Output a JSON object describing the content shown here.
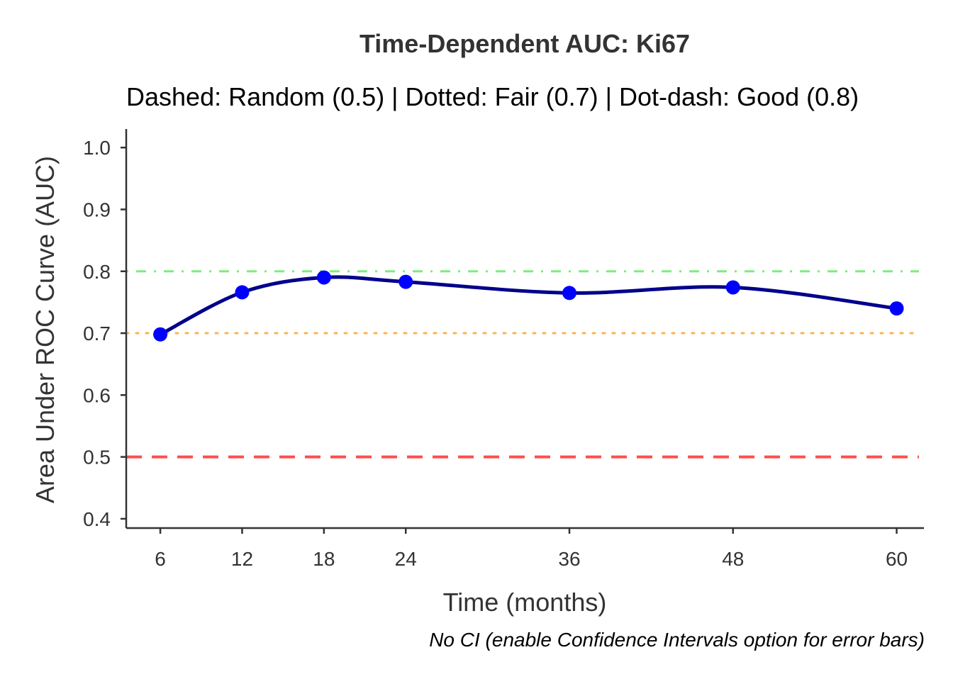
{
  "chart_data": {
    "type": "line",
    "title": "Time-Dependent AUC: Ki67",
    "subtitle": "Dashed: Random (0.5) | Dotted: Fair (0.7) | Dot-dash: Good (0.8)",
    "xlabel": "Time (months)",
    "ylabel": "Area Under ROC Curve (AUC)",
    "caption": "No CI (enable Confidence Intervals option for error bars)",
    "xlim": [
      3.5,
      62
    ],
    "ylim": [
      0.385,
      1.03
    ],
    "x_ticks": [
      "6",
      "12",
      "18",
      "24",
      "36",
      "48",
      "60"
    ],
    "y_ticks": [
      "0.4",
      "0.5",
      "0.6",
      "0.7",
      "0.8",
      "0.9",
      "1.0"
    ],
    "grid": false,
    "legend": "none",
    "series": [
      {
        "x": [
          6,
          12,
          18,
          24,
          36,
          48,
          60
        ],
        "values": [
          0.698,
          0.766,
          0.79,
          0.783,
          0.765,
          0.774,
          0.74
        ],
        "point_color": "#0000ff",
        "line_color": "#00008b",
        "smoothed": true
      }
    ],
    "reference_lines": [
      {
        "y": 0.5,
        "style": "dashed",
        "color": "#ff4d4d"
      },
      {
        "y": 0.7,
        "style": "dotted",
        "color": "#ffb347"
      },
      {
        "y": 0.8,
        "style": "dotdash",
        "color": "#7dee7d"
      }
    ]
  }
}
